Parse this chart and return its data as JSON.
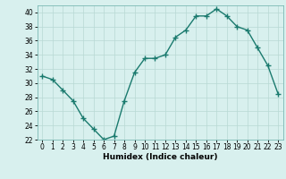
{
  "x": [
    0,
    1,
    2,
    3,
    4,
    5,
    6,
    7,
    8,
    9,
    10,
    11,
    12,
    13,
    14,
    15,
    16,
    17,
    18,
    19,
    20,
    21,
    22,
    23
  ],
  "y": [
    31,
    30.5,
    29,
    27.5,
    25,
    23.5,
    22,
    22.5,
    27.5,
    31.5,
    33.5,
    33.5,
    34,
    36.5,
    37.5,
    39.5,
    39.5,
    40.5,
    39.5,
    38,
    37.5,
    35,
    32.5,
    28.5
  ],
  "line_color": "#1a7a6e",
  "marker": "+",
  "markersize": 4,
  "linewidth": 1.0,
  "bg_color": "#d8f0ee",
  "grid_color": "#b8d8d4",
  "xlabel": "Humidex (Indice chaleur)",
  "ylim": [
    22,
    41
  ],
  "xlim": [
    -0.5,
    23.5
  ],
  "yticks": [
    22,
    24,
    26,
    28,
    30,
    32,
    34,
    36,
    38,
    40
  ],
  "xticks": [
    0,
    1,
    2,
    3,
    4,
    5,
    6,
    7,
    8,
    9,
    10,
    11,
    12,
    13,
    14,
    15,
    16,
    17,
    18,
    19,
    20,
    21,
    22,
    23
  ],
  "xlabel_fontsize": 6.5,
  "tick_fontsize": 5.5,
  "spine_color": "#7ab8b4"
}
